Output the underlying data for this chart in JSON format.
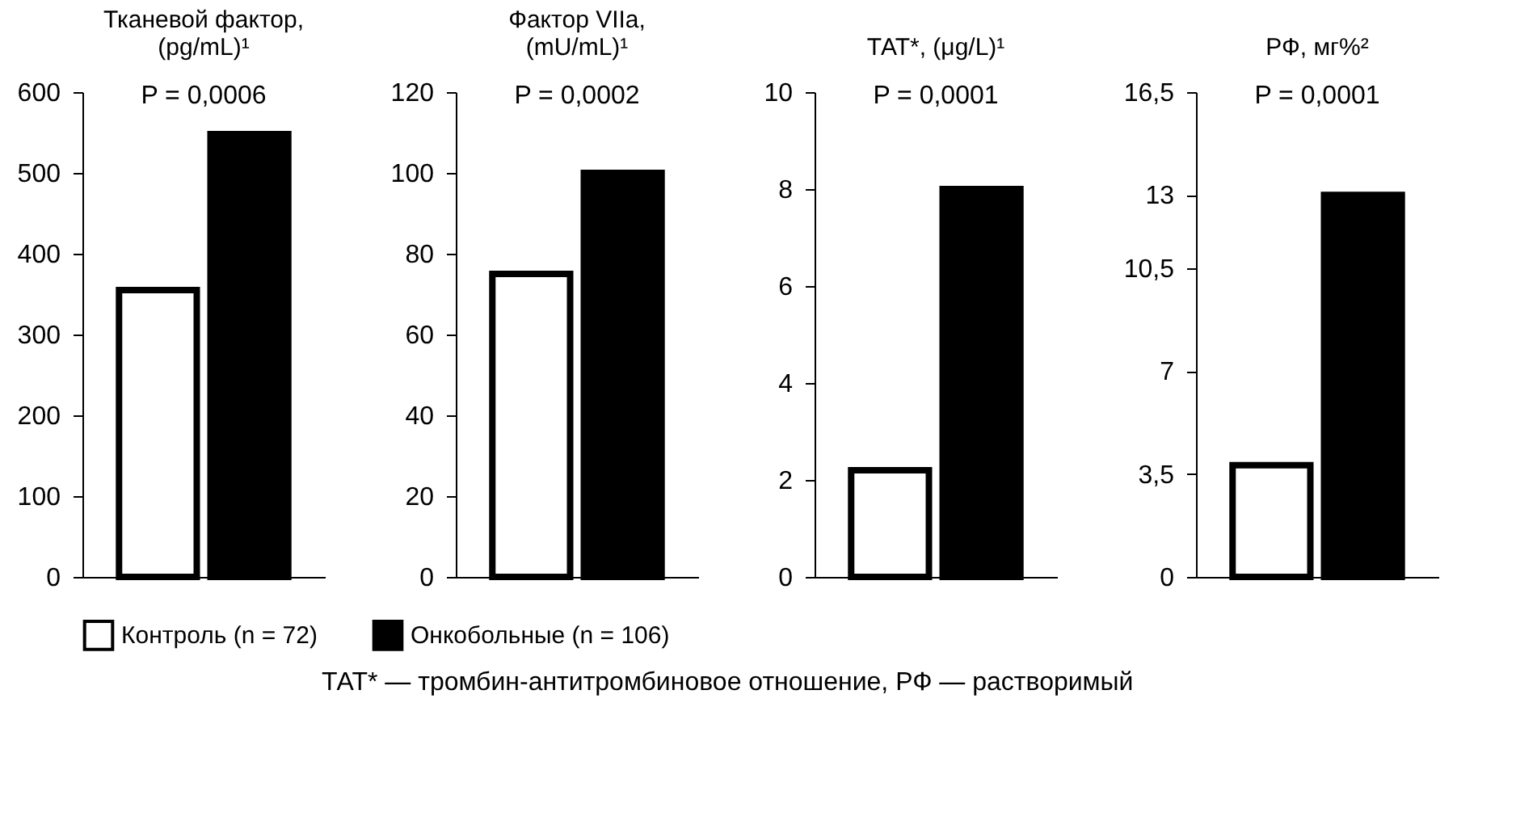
{
  "chart_data": [
    {
      "type": "bar",
      "title": "Тканевой фактор,\n(pg/mL)¹",
      "categories": [
        null,
        null
      ],
      "series": [
        {
          "name": "Контроль (n = 72)",
          "color": "#ffffff",
          "values": [
            355,
            null
          ]
        },
        {
          "name": "Онкобольные (n = 106)",
          "color": "#000000",
          "values": [
            null,
            548
          ]
        }
      ],
      "ylim": [
        0,
        600
      ],
      "yticks": [
        0,
        100,
        200,
        300,
        400,
        500,
        600
      ],
      "grid": false,
      "legend": "bottom",
      "tick_labels": "y",
      "annotations": [
        "P = 0,0006",
        "ТАТ* — тромбин-антитромбиновое отношение, РФ — растворимый"
      ]
    },
    {
      "type": "bar",
      "title": "Фактор VIIa,\n(mU/mL)¹",
      "categories": [
        null,
        null
      ],
      "series": [
        {
          "name": "Контроль (n = 72)",
          "color": "#ffffff",
          "values": [
            75,
            null
          ]
        },
        {
          "name": "Онкобольные (n = 106)",
          "color": "#000000",
          "values": [
            null,
            100
          ]
        }
      ],
      "ylim": [
        0,
        120
      ],
      "yticks": [
        0,
        20,
        40,
        60,
        80,
        100,
        120
      ],
      "grid": false,
      "legend": "bottom",
      "tick_labels": "y",
      "annotations": [
        "P = 0,0002"
      ]
    },
    {
      "type": "bar",
      "title": "ТАТ*, (μg/L)¹",
      "categories": [
        null,
        null
      ],
      "series": [
        {
          "name": "Контроль (n = 72)",
          "color": "#ffffff",
          "values": [
            2.2,
            null
          ]
        },
        {
          "name": "Онкобольные (n = 106)",
          "color": "#000000",
          "values": [
            null,
            8.0
          ]
        }
      ],
      "ylim": [
        0,
        10
      ],
      "yticks": [
        0,
        2,
        4,
        6,
        8,
        10
      ],
      "grid": false,
      "legend": "bottom",
      "tick_labels": "y",
      "annotations": [
        "P = 0,0001"
      ]
    },
    {
      "type": "bar",
      "title": "РФ, мг%²",
      "categories": [
        null,
        null
      ],
      "series": [
        {
          "name": "Контроль (n = 72)",
          "color": "#ffffff",
          "values": [
            3.8,
            null
          ]
        },
        {
          "name": "Онкобольные (n = 106)",
          "color": "#000000",
          "values": [
            null,
            13
          ]
        }
      ],
      "ylim": [
        0,
        16.5
      ],
      "yticks": [
        0,
        {
          "value": 3.5,
          "label": "3,5"
        },
        {
          "value": 7,
          "label": "7"
        },
        {
          "value": 10.5,
          "label": "10,5"
        },
        {
          "value": 13,
          "label": "13"
        },
        {
          "value": 16.5,
          "label": "16,5"
        }
      ],
      "grid": false,
      "legend": "bottom",
      "tick_labels": "y",
      "annotations": [
        "P = 0,0001"
      ]
    }
  ]
}
